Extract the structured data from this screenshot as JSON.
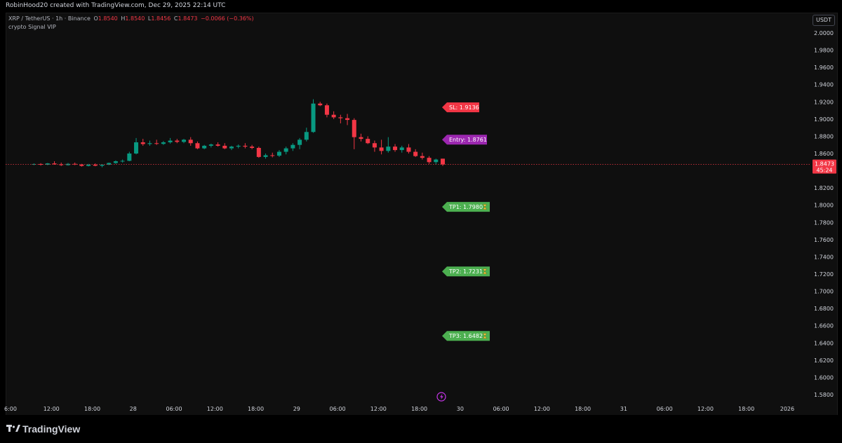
{
  "header": {
    "text": "RobinHood20 created with TradingView.com, Dec 29, 2025 22:14 UTC"
  },
  "legend": {
    "symbol": "XRP / TetherUS · 1h · Binance",
    "o_label": "O",
    "o": "1.8540",
    "h_label": "H",
    "h": "1.8540",
    "l_label": "L",
    "l": "1.8456",
    "c_label": "C",
    "c": "1.8473",
    "change": "−0.0066 (−0.36%)"
  },
  "indicator_name": "crypto Signal VIP",
  "currency_button": "USDT",
  "brand": "TradingView",
  "colors": {
    "up": "#089981",
    "down": "#f23645",
    "entry": "#9c27b0",
    "tp": "#4caf50",
    "sl": "#f23645",
    "axis_text": "#d1d4dc",
    "background": "#0f0f0f"
  },
  "chart_data": {
    "type": "candlestick",
    "ylim": [
      1.57,
      2.008
    ],
    "y_ticks": [
      "2.0000",
      "1.9800",
      "1.9600",
      "1.9400",
      "1.9200",
      "1.9000",
      "1.8800",
      "1.8600",
      "1.8400",
      "1.8200",
      "1.8000",
      "1.7800",
      "1.7600",
      "1.7400",
      "1.7200",
      "1.7000",
      "1.6800",
      "1.6600",
      "1.6400",
      "1.6200",
      "1.6000",
      "1.5800"
    ],
    "x_ticks": [
      "6:00",
      "12:00",
      "18:00",
      "28",
      "06:00",
      "12:00",
      "18:00",
      "29",
      "06:00",
      "12:00",
      "18:00",
      "30",
      "06:00",
      "12:00",
      "18:00",
      "31",
      "06:00",
      "12:00",
      "18:00",
      "2026"
    ],
    "x_tick_hours": [
      0,
      6,
      12,
      18,
      24,
      30,
      36,
      42,
      48,
      54,
      60,
      66,
      72,
      78,
      84,
      90,
      96,
      102,
      108,
      114
    ],
    "last_price": "1.8473",
    "countdown": "45:24",
    "candles": [
      {
        "o": 1.8472,
        "h": 1.8485,
        "l": 1.8465,
        "c": 1.8478
      },
      {
        "o": 1.8478,
        "h": 1.8488,
        "l": 1.846,
        "c": 1.847
      },
      {
        "o": 1.847,
        "h": 1.849,
        "l": 1.8465,
        "c": 1.8485
      },
      {
        "o": 1.8485,
        "h": 1.851,
        "l": 1.847,
        "c": 1.8475
      },
      {
        "o": 1.8475,
        "h": 1.8495,
        "l": 1.8455,
        "c": 1.8465
      },
      {
        "o": 1.8465,
        "h": 1.849,
        "l": 1.846,
        "c": 1.848
      },
      {
        "o": 1.848,
        "h": 1.8495,
        "l": 1.8465,
        "c": 1.8472
      },
      {
        "o": 1.8472,
        "h": 1.848,
        "l": 1.8448,
        "c": 1.8456
      },
      {
        "o": 1.8456,
        "h": 1.848,
        "l": 1.845,
        "c": 1.847
      },
      {
        "o": 1.847,
        "h": 1.8485,
        "l": 1.8452,
        "c": 1.8458
      },
      {
        "o": 1.8458,
        "h": 1.8478,
        "l": 1.844,
        "c": 1.847
      },
      {
        "o": 1.847,
        "h": 1.8495,
        "l": 1.8465,
        "c": 1.849
      },
      {
        "o": 1.849,
        "h": 1.852,
        "l": 1.848,
        "c": 1.851
      },
      {
        "o": 1.851,
        "h": 1.853,
        "l": 1.8495,
        "c": 1.8515
      },
      {
        "o": 1.8515,
        "h": 1.862,
        "l": 1.851,
        "c": 1.86
      },
      {
        "o": 1.86,
        "h": 1.878,
        "l": 1.859,
        "c": 1.873
      },
      {
        "o": 1.873,
        "h": 1.877,
        "l": 1.869,
        "c": 1.871
      },
      {
        "o": 1.871,
        "h": 1.875,
        "l": 1.869,
        "c": 1.872
      },
      {
        "o": 1.872,
        "h": 1.876,
        "l": 1.87,
        "c": 1.8712
      },
      {
        "o": 1.8712,
        "h": 1.8745,
        "l": 1.87,
        "c": 1.873
      },
      {
        "o": 1.873,
        "h": 1.878,
        "l": 1.8715,
        "c": 1.875
      },
      {
        "o": 1.875,
        "h": 1.877,
        "l": 1.872,
        "c": 1.8735
      },
      {
        "o": 1.8735,
        "h": 1.877,
        "l": 1.872,
        "c": 1.876
      },
      {
        "o": 1.876,
        "h": 1.879,
        "l": 1.869,
        "c": 1.872
      },
      {
        "o": 1.872,
        "h": 1.874,
        "l": 1.865,
        "c": 1.866
      },
      {
        "o": 1.866,
        "h": 1.87,
        "l": 1.865,
        "c": 1.869
      },
      {
        "o": 1.869,
        "h": 1.8715,
        "l": 1.867,
        "c": 1.8705
      },
      {
        "o": 1.8705,
        "h": 1.873,
        "l": 1.868,
        "c": 1.869
      },
      {
        "o": 1.869,
        "h": 1.872,
        "l": 1.865,
        "c": 1.866
      },
      {
        "o": 1.866,
        "h": 1.869,
        "l": 1.864,
        "c": 1.868
      },
      {
        "o": 1.868,
        "h": 1.8705,
        "l": 1.866,
        "c": 1.869
      },
      {
        "o": 1.869,
        "h": 1.872,
        "l": 1.866,
        "c": 1.868
      },
      {
        "o": 1.868,
        "h": 1.87,
        "l": 1.865,
        "c": 1.8665
      },
      {
        "o": 1.8665,
        "h": 1.868,
        "l": 1.855,
        "c": 1.856
      },
      {
        "o": 1.856,
        "h": 1.86,
        "l": 1.854,
        "c": 1.858
      },
      {
        "o": 1.858,
        "h": 1.861,
        "l": 1.8555,
        "c": 1.8575
      },
      {
        "o": 1.8575,
        "h": 1.864,
        "l": 1.856,
        "c": 1.862
      },
      {
        "o": 1.862,
        "h": 1.868,
        "l": 1.859,
        "c": 1.866
      },
      {
        "o": 1.866,
        "h": 1.872,
        "l": 1.863,
        "c": 1.87
      },
      {
        "o": 1.87,
        "h": 1.878,
        "l": 1.865,
        "c": 1.876
      },
      {
        "o": 1.876,
        "h": 1.89,
        "l": 1.874,
        "c": 1.885
      },
      {
        "o": 1.885,
        "h": 1.923,
        "l": 1.884,
        "c": 1.918
      },
      {
        "o": 1.918,
        "h": 1.92,
        "l": 1.915,
        "c": 1.916
      },
      {
        "o": 1.916,
        "h": 1.918,
        "l": 1.902,
        "c": 1.905
      },
      {
        "o": 1.905,
        "h": 1.909,
        "l": 1.9,
        "c": 1.902
      },
      {
        "o": 1.902,
        "h": 1.905,
        "l": 1.895,
        "c": 1.901
      },
      {
        "o": 1.901,
        "h": 1.906,
        "l": 1.893,
        "c": 1.899
      },
      {
        "o": 1.899,
        "h": 1.901,
        "l": 1.865,
        "c": 1.879
      },
      {
        "o": 1.879,
        "h": 1.883,
        "l": 1.874,
        "c": 1.877
      },
      {
        "o": 1.877,
        "h": 1.88,
        "l": 1.871,
        "c": 1.872
      },
      {
        "o": 1.872,
        "h": 1.875,
        "l": 1.862,
        "c": 1.867
      },
      {
        "o": 1.867,
        "h": 1.876,
        "l": 1.859,
        "c": 1.863
      },
      {
        "o": 1.863,
        "h": 1.879,
        "l": 1.861,
        "c": 1.868
      },
      {
        "o": 1.868,
        "h": 1.871,
        "l": 1.862,
        "c": 1.864
      },
      {
        "o": 1.864,
        "h": 1.869,
        "l": 1.861,
        "c": 1.867
      },
      {
        "o": 1.867,
        "h": 1.871,
        "l": 1.86,
        "c": 1.862
      },
      {
        "o": 1.862,
        "h": 1.865,
        "l": 1.856,
        "c": 1.857
      },
      {
        "o": 1.857,
        "h": 1.861,
        "l": 1.853,
        "c": 1.855
      },
      {
        "o": 1.855,
        "h": 1.857,
        "l": 1.848,
        "c": 1.85
      },
      {
        "o": 1.85,
        "h": 1.854,
        "l": 1.847,
        "c": 1.853
      },
      {
        "o": 1.854,
        "h": 1.854,
        "l": 1.8456,
        "c": 1.8473
      }
    ],
    "signals": [
      {
        "text": "SL: 1.9136",
        "price": 1.9136,
        "type": "sl",
        "hourglass": false
      },
      {
        "text": "Entry: 1.8761",
        "price": 1.8761,
        "type": "entry",
        "hourglass": false
      },
      {
        "text": "TP1: 1.7980",
        "price": 1.798,
        "type": "tp",
        "hourglass": true
      },
      {
        "text": "TP2: 1.7231",
        "price": 1.7231,
        "type": "tp",
        "hourglass": true
      },
      {
        "text": "TP3: 1.6482",
        "price": 1.6482,
        "type": "tp",
        "hourglass": true
      }
    ]
  }
}
